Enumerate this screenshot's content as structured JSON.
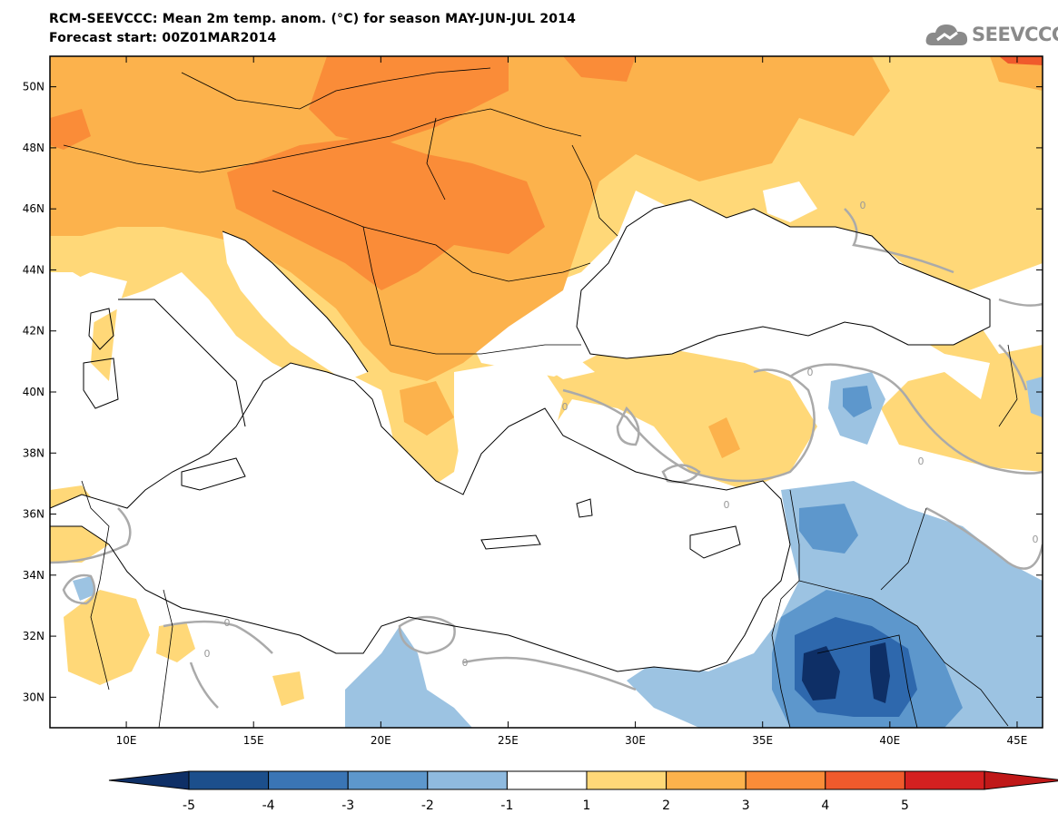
{
  "header": {
    "title_line1": "RCM-SEEVCCC: Mean 2m temp. anom. (°C) for season MAY-JUN-JUL 2014",
    "title_line2": "Forecast start: 00Z01MAR2014"
  },
  "logo": {
    "text": "SEEVCCC",
    "icon": "cloud-icon"
  },
  "map": {
    "lon_range": [
      7,
      46
    ],
    "lat_range": [
      29,
      51
    ],
    "lat_ticks": [
      {
        "label": "50N",
        "lat": 50
      },
      {
        "label": "48N",
        "lat": 48
      },
      {
        "label": "46N",
        "lat": 46
      },
      {
        "label": "44N",
        "lat": 44
      },
      {
        "label": "42N",
        "lat": 42
      },
      {
        "label": "40N",
        "lat": 40
      },
      {
        "label": "38N",
        "lat": 38
      },
      {
        "label": "36N",
        "lat": 36
      },
      {
        "label": "34N",
        "lat": 34
      },
      {
        "label": "32N",
        "lat": 32
      },
      {
        "label": "30N",
        "lat": 30
      }
    ],
    "lon_ticks": [
      {
        "label": "10E",
        "lon": 10
      },
      {
        "label": "15E",
        "lon": 15
      },
      {
        "label": "20E",
        "lon": 20
      },
      {
        "label": "25E",
        "lon": 25
      },
      {
        "label": "30E",
        "lon": 30
      },
      {
        "label": "35E",
        "lon": 35
      },
      {
        "label": "40E",
        "lon": 40
      },
      {
        "label": "45E",
        "lon": 45
      }
    ],
    "contour_label": "0"
  },
  "colorbar": {
    "labels": [
      "-5",
      "-4",
      "-3",
      "-2",
      "-1",
      "1",
      "2",
      "3",
      "4",
      "5"
    ],
    "colors": [
      "#1c4f8c",
      "#3a75b5",
      "#5d97cc",
      "#8fbadf",
      "#ffffff",
      "#ffd878",
      "#fcb24c",
      "#fa8c38",
      "#f05a2c",
      "#d42020"
    ],
    "low_end_color": "#0e2f66",
    "high_end_color": "#c01818"
  },
  "legend_colors": {
    "warm1": "#ffd878",
    "warm2": "#fcb24c",
    "warm3": "#fa8c38",
    "cool1": "#9cc3e2",
    "cool2": "#5d97cc",
    "cool3": "#2e68ad",
    "cool4": "#0e2f66",
    "coast": "#000000",
    "contour": "#aaaaaa"
  }
}
